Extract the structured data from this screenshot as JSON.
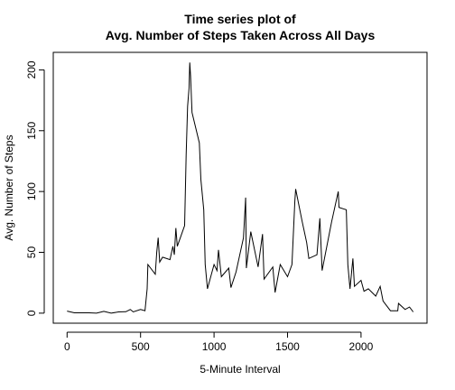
{
  "chart_data": {
    "type": "line",
    "title": [
      "Time series plot of",
      "Avg. Number of Steps Taken Across All Days"
    ],
    "x_label": "5-Minute Interval",
    "y_label": "Avg. Number of Steps",
    "x": [
      0,
      50,
      100,
      150,
      200,
      250,
      300,
      350,
      400,
      430,
      450,
      500,
      530,
      545,
      550,
      600,
      610,
      620,
      630,
      650,
      700,
      720,
      730,
      740,
      750,
      800,
      810,
      820,
      830,
      835,
      840,
      850,
      900,
      910,
      930,
      940,
      955,
      1000,
      1020,
      1030,
      1050,
      1100,
      1115,
      1150,
      1200,
      1215,
      1220,
      1250,
      1300,
      1330,
      1340,
      1400,
      1415,
      1450,
      1500,
      1530,
      1550,
      1555,
      1600,
      1630,
      1645,
      1700,
      1720,
      1735,
      1800,
      1845,
      1850,
      1900,
      1910,
      1925,
      1945,
      1955,
      2000,
      2020,
      2050,
      2100,
      2130,
      2150,
      2200,
      2250,
      2255,
      2300,
      2330,
      2355
    ],
    "series": [
      {
        "name": "steps",
        "color": "#000000",
        "values": [
          1.7,
          0.3,
          0.3,
          0.3,
          0,
          1.5,
          0,
          1,
          1.2,
          3,
          1,
          3,
          2,
          20,
          40,
          32,
          50,
          62,
          42,
          46,
          44,
          55,
          48,
          70,
          55,
          72,
          130,
          170,
          185,
          206,
          195,
          165,
          140,
          110,
          85,
          40,
          20,
          40,
          35,
          52,
          30,
          37,
          21,
          34,
          62,
          95,
          37,
          67,
          38,
          65,
          28,
          38,
          17,
          40,
          30,
          40,
          92,
          102,
          75,
          58,
          45,
          48,
          78,
          35,
          75,
          100,
          87,
          85,
          40,
          20,
          45,
          22,
          27,
          18,
          20,
          14,
          22,
          10,
          2,
          2,
          8,
          3,
          5,
          1
        ]
      }
    ],
    "xlim": [
      -94,
      2449
    ],
    "ylim": [
      -8.25,
      214.4
    ],
    "xticks": [
      0,
      500,
      1000,
      1500,
      2000
    ],
    "yticks": [
      0,
      50,
      100,
      150,
      200
    ]
  }
}
